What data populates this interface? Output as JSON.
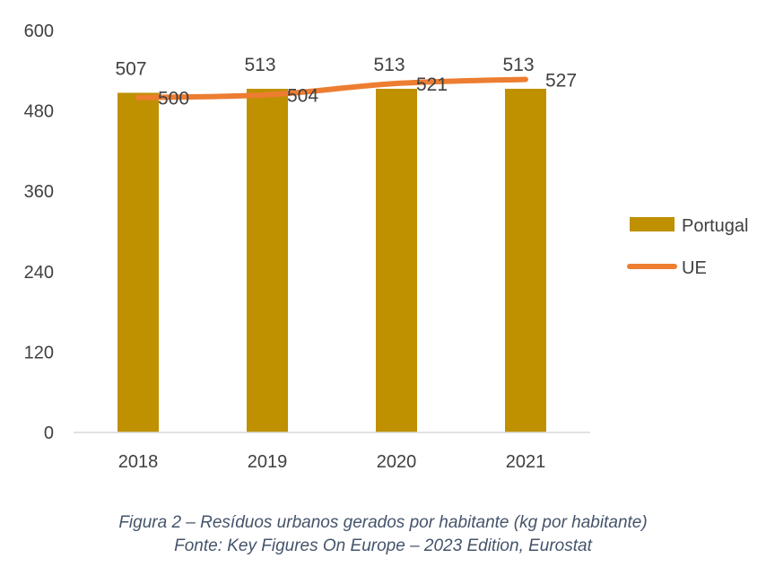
{
  "chart_data": {
    "type": "bar",
    "categories": [
      "2018",
      "2019",
      "2020",
      "2021"
    ],
    "series": [
      {
        "name": "Portugal",
        "kind": "bar",
        "color": "#bf9000",
        "values": [
          507,
          513,
          513,
          513
        ]
      },
      {
        "name": "UE",
        "kind": "line",
        "color": "#ed7d31",
        "values": [
          500,
          504,
          521,
          527
        ]
      }
    ],
    "ylim": [
      0,
      600
    ],
    "yticks": [
      0,
      120,
      240,
      360,
      480,
      600
    ],
    "grid": false,
    "legend": "right"
  },
  "caption": {
    "line1": "Figura 2 – Resíduos urbanos gerados por habitante (kg por habitante)",
    "line2": "Fonte: Key Figures On Europe – 2023 Edition, Eurostat"
  }
}
